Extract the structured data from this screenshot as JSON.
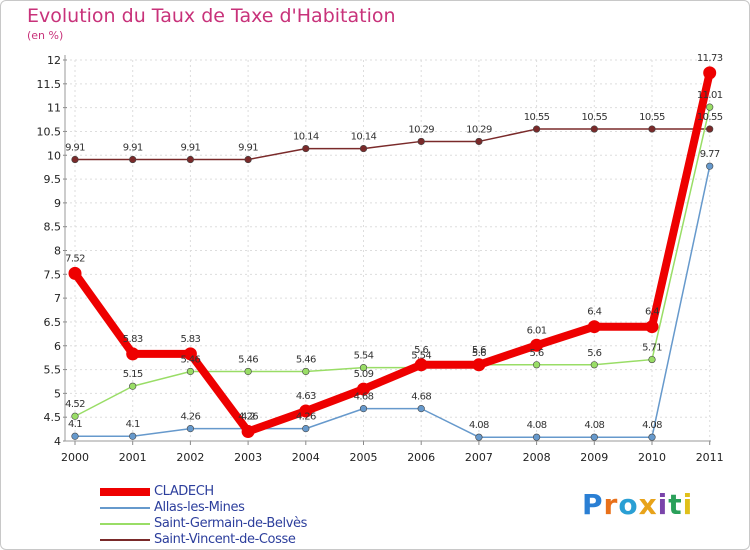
{
  "chart_data": {
    "type": "line",
    "title": "Evolution du Taux de Taxe d'Habitation",
    "subtitle": "(en %)",
    "xlabel": "",
    "ylabel": "",
    "categories": [
      "2000",
      "2001",
      "2002",
      "2003",
      "2004",
      "2005",
      "2006",
      "2007",
      "2008",
      "2009",
      "2010",
      "2011"
    ],
    "ylim": [
      4,
      12
    ],
    "yticks": [
      "4",
      "4.5",
      "5",
      "5.5",
      "6",
      "6.5",
      "7",
      "7.5",
      "8",
      "8.5",
      "9",
      "9.5",
      "10",
      "10.5",
      "11",
      "11.5",
      "12"
    ],
    "grid": true,
    "legend_position": "bottom-left",
    "series": [
      {
        "name": "CLADECH",
        "color": "#ee0000",
        "values": [
          7.52,
          5.83,
          5.83,
          4.2,
          4.63,
          5.09,
          5.6,
          5.6,
          6.01,
          6.4,
          6.4,
          11.73
        ],
        "labels": [
          "7.52",
          "5.83",
          "5.83",
          "4.2",
          "4.63",
          "5.09",
          "5.6",
          "5.6",
          "6.01",
          "6.4",
          "6.4",
          "11.73"
        ]
      },
      {
        "name": "Allas-les-Mines",
        "color": "#6699cc",
        "values": [
          4.1,
          4.1,
          4.26,
          4.26,
          4.26,
          4.68,
          4.68,
          4.08,
          4.08,
          4.08,
          4.08,
          9.77
        ],
        "labels": [
          "4.1",
          "4.1",
          "4.26",
          "4.26",
          "4.26",
          "4.68",
          "4.68",
          "4.08",
          "4.08",
          "4.08",
          "4.08",
          "9.77"
        ]
      },
      {
        "name": "Saint-Germain-de-Belvès",
        "color": "#99dd66",
        "values": [
          4.52,
          5.15,
          5.46,
          5.46,
          5.46,
          5.54,
          5.54,
          5.6,
          5.6,
          5.6,
          5.71,
          11.01
        ],
        "labels": [
          "4.52",
          "5.15",
          "5.46",
          "5.46",
          "5.46",
          "5.54",
          "5.54",
          "5.6",
          "5.6",
          "5.6",
          "5.71",
          "11.01"
        ]
      },
      {
        "name": "Saint-Vincent-de-Cosse",
        "color": "#7a2a2a",
        "values": [
          9.91,
          9.91,
          9.91,
          9.91,
          10.14,
          10.14,
          10.29,
          10.29,
          10.55,
          10.55,
          10.55,
          10.55
        ],
        "labels": [
          "9.91",
          "9.91",
          "9.91",
          "9.91",
          "10.14",
          "10.14",
          "10.29",
          "10.29",
          "10.55",
          "10.55",
          "10.55",
          "10.55"
        ]
      }
    ]
  },
  "brand": {
    "letters": [
      "P",
      "r",
      "o",
      "x",
      "i",
      "t",
      "i"
    ],
    "colors": [
      "#2a7fd4",
      "#e8701a",
      "#2a9fd4",
      "#e8a31a",
      "#7a44aa",
      "#2aa05a",
      "#e0c01a"
    ]
  }
}
